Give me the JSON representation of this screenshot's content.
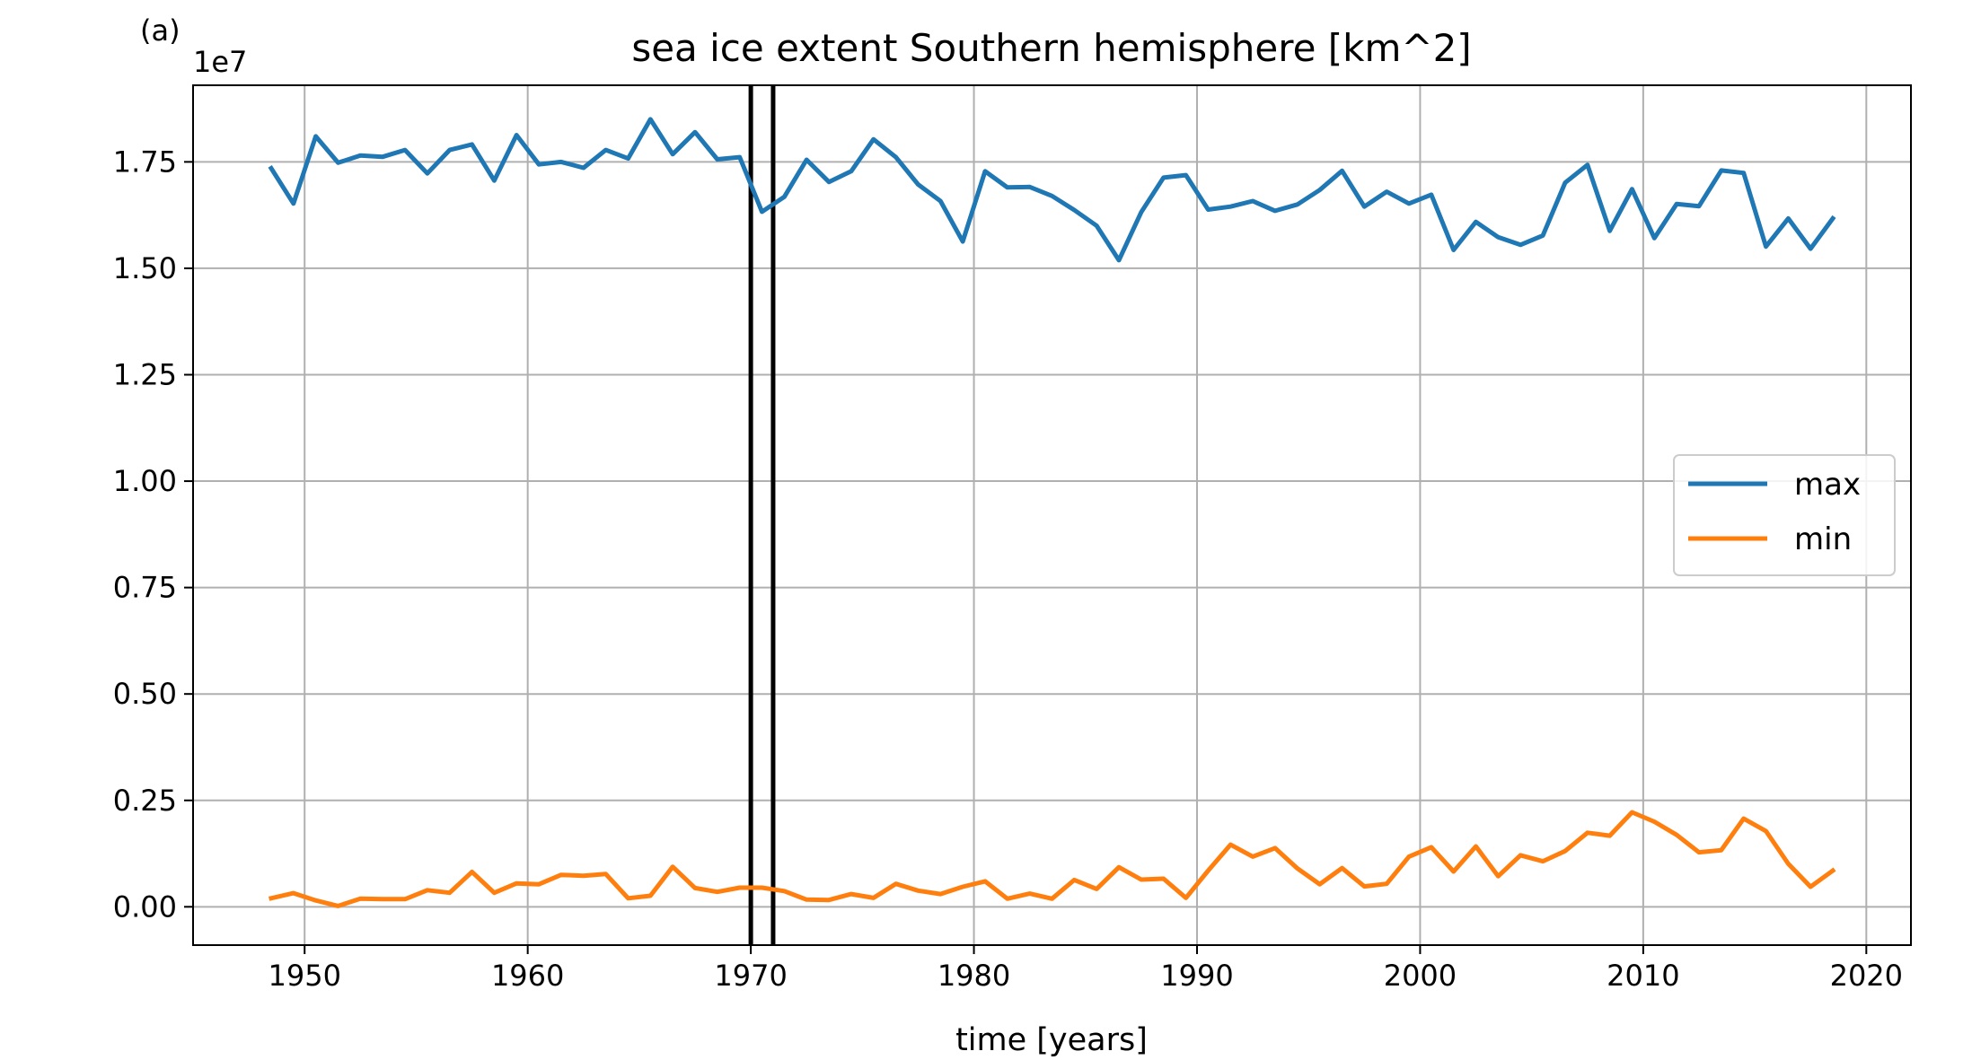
{
  "chart_data": {
    "type": "line",
    "panel_label": "(a)",
    "title": "sea ice extent Southern hemisphere [km^2]",
    "xlabel": "time [years]",
    "ylabel": "",
    "y_offset_text": "1e7",
    "xlim": [
      1945,
      2022
    ],
    "ylim": [
      -0.09,
      1.93
    ],
    "y_scale_factor": 10000000,
    "grid": true,
    "legend_position": "center-right",
    "xticks": [
      1950,
      1960,
      1970,
      1980,
      1990,
      2000,
      2010,
      2020
    ],
    "xtick_labels": [
      "1950",
      "1960",
      "1970",
      "1980",
      "1990",
      "2000",
      "2010",
      "2020"
    ],
    "yticks": [
      0.0,
      0.25,
      0.5,
      0.75,
      1.0,
      1.25,
      1.5,
      1.75
    ],
    "ytick_labels": [
      "0.00",
      "0.25",
      "0.50",
      "0.75",
      "1.00",
      "1.25",
      "1.50",
      "1.75"
    ],
    "vertical_lines": [
      {
        "x": 1970.0,
        "color": "#000000"
      },
      {
        "x": 1971.0,
        "color": "#000000"
      }
    ],
    "x": [
      1948.5,
      1949.5,
      1950.5,
      1951.5,
      1952.5,
      1953.5,
      1954.5,
      1955.5,
      1956.5,
      1957.5,
      1958.5,
      1959.5,
      1960.5,
      1961.5,
      1962.5,
      1963.5,
      1964.5,
      1965.5,
      1966.5,
      1967.5,
      1968.5,
      1969.5,
      1970.5,
      1971.5,
      1972.5,
      1973.5,
      1974.5,
      1975.5,
      1976.5,
      1977.5,
      1978.5,
      1979.5,
      1980.5,
      1981.5,
      1982.5,
      1983.5,
      1984.5,
      1985.5,
      1986.5,
      1987.5,
      1988.5,
      1989.5,
      1990.5,
      1991.5,
      1992.5,
      1993.5,
      1994.5,
      1995.5,
      1996.5,
      1997.5,
      1998.5,
      1999.5,
      2000.5,
      2001.5,
      2002.5,
      2003.5,
      2004.5,
      2005.5,
      2006.5,
      2007.5,
      2008.5,
      2009.5,
      2010.5,
      2011.5,
      2012.5,
      2013.5,
      2014.5,
      2015.5,
      2016.5,
      2017.5,
      2018.5
    ],
    "series": [
      {
        "name": "max",
        "color": "#1f77b4",
        "values": [
          1.735,
          1.652,
          1.81,
          1.748,
          1.765,
          1.762,
          1.778,
          1.723,
          1.778,
          1.791,
          1.706,
          1.813,
          1.744,
          1.75,
          1.736,
          1.778,
          1.758,
          1.85,
          1.768,
          1.82,
          1.756,
          1.761,
          1.633,
          1.668,
          1.755,
          1.703,
          1.728,
          1.803,
          1.761,
          1.697,
          1.658,
          1.563,
          1.728,
          1.69,
          1.691,
          1.67,
          1.637,
          1.6,
          1.519,
          1.632,
          1.713,
          1.719,
          1.638,
          1.645,
          1.658,
          1.635,
          1.65,
          1.684,
          1.729,
          1.645,
          1.68,
          1.652,
          1.673,
          1.543,
          1.609,
          1.573,
          1.555,
          1.577,
          1.701,
          1.743,
          1.588,
          1.686,
          1.571,
          1.651,
          1.646,
          1.73,
          1.724,
          1.551,
          1.617,
          1.546,
          1.617
        ]
      },
      {
        "name": "min",
        "color": "#ff7f0e",
        "values": [
          0.02,
          0.032,
          0.015,
          0.002,
          0.019,
          0.018,
          0.018,
          0.039,
          0.033,
          0.082,
          0.033,
          0.055,
          0.053,
          0.075,
          0.073,
          0.077,
          0.02,
          0.026,
          0.094,
          0.044,
          0.035,
          0.045,
          0.045,
          0.037,
          0.017,
          0.016,
          0.03,
          0.021,
          0.054,
          0.038,
          0.03,
          0.047,
          0.06,
          0.019,
          0.031,
          0.019,
          0.063,
          0.042,
          0.093,
          0.064,
          0.066,
          0.021,
          0.085,
          0.146,
          0.118,
          0.138,
          0.09,
          0.053,
          0.091,
          0.048,
          0.054,
          0.118,
          0.14,
          0.083,
          0.142,
          0.072,
          0.121,
          0.107,
          0.131,
          0.174,
          0.167,
          0.222,
          0.2,
          0.169,
          0.128,
          0.133,
          0.207,
          0.178,
          0.101,
          0.047,
          0.085
        ]
      }
    ]
  }
}
